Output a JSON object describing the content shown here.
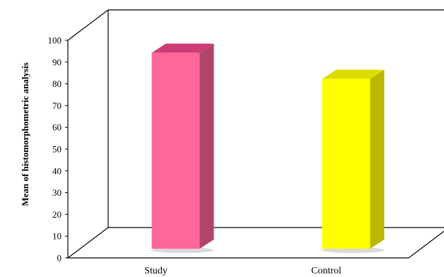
{
  "chart_data": {
    "type": "bar",
    "style": "3d-column",
    "categories": [
      "Study",
      "Control"
    ],
    "values": [
      90,
      78
    ],
    "ylabel": "Mean of histomorphometric analysis",
    "xlabel": "",
    "ylim": [
      0,
      100
    ],
    "yticks": [
      "0",
      "10",
      "20",
      "30",
      "40",
      "50",
      "60",
      "70",
      "80",
      "90",
      "100"
    ],
    "colors": {
      "Study": {
        "front": "#ff6699",
        "side": "#b0446b",
        "top": "#cc3d74"
      },
      "Control": {
        "front": "#ffff00",
        "side": "#b8b800",
        "top": "#dcdc00"
      }
    },
    "grid": false,
    "legend": "none"
  }
}
